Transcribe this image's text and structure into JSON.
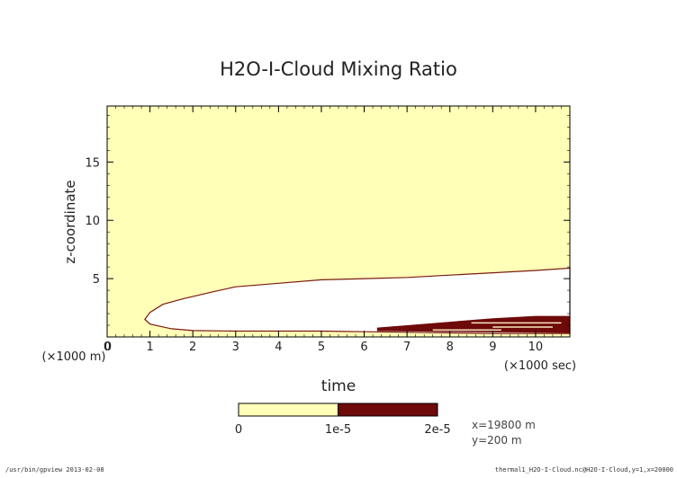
{
  "chart_data": {
    "type": "heatmap",
    "title": "H2O-I-Cloud Mixing Ratio",
    "xlabel": "time",
    "ylabel": "z-coordinate",
    "x_unit_note": "(×1000 sec)",
    "y_unit_note": "(×1000 m)",
    "x_ticks": [
      0,
      1,
      2,
      3,
      4,
      5,
      6,
      7,
      8,
      9,
      10
    ],
    "y_ticks": [
      5,
      10,
      15
    ],
    "y_origin_label": "0",
    "xlim": [
      0,
      10.8
    ],
    "ylim": [
      0,
      19.8
    ],
    "color_levels": [
      {
        "range": [
          0,
          1e-05
        ],
        "color": "#ffffb8",
        "label": "0 – 1e-5"
      },
      {
        "range": [
          1e-05,
          2e-05
        ],
        "color": "#6e0a0a",
        "label": "1e-5 – 2e-5"
      }
    ],
    "colorbar_ticks": [
      "0",
      "1e-5",
      "2e-5"
    ],
    "missing_region_color": "#ffffff",
    "cloud_upper_boundary": {
      "x": [
        0.88,
        1.0,
        1.3,
        1.8,
        2.5,
        3.0,
        4.0,
        5.0,
        6.0,
        7.0,
        8.0,
        9.0,
        10.0,
        10.8
      ],
      "z": [
        1.5,
        2.1,
        2.8,
        3.3,
        3.9,
        4.3,
        4.6,
        4.9,
        5.0,
        5.1,
        5.3,
        5.5,
        5.7,
        5.9
      ]
    },
    "cloud_lower_boundary": {
      "x": [
        0.88,
        1.0,
        1.5,
        2.0,
        3.0,
        5.0,
        6.0,
        7.0,
        8.0,
        9.0,
        10.0,
        10.8
      ],
      "z": [
        1.5,
        1.1,
        0.7,
        0.55,
        0.5,
        0.5,
        0.45,
        0.4,
        0.35,
        0.3,
        0.3,
        0.3
      ]
    },
    "high_value_band": {
      "x_start": 6.3,
      "x_end": 10.8,
      "z_top": [
        0.8,
        1.0,
        1.3,
        1.6,
        1.8,
        1.8
      ],
      "x_points": [
        6.3,
        7.0,
        8.0,
        9.0,
        10.0,
        10.8
      ]
    },
    "annotations": [
      "x=19800 m",
      "y=200 m"
    ]
  },
  "footer": {
    "left": "/usr/bin/gpview  2013-02-08",
    "right": "thermal1_H2O-I-Cloud.nc@H2O-I-Cloud,y=1,x=20000"
  }
}
